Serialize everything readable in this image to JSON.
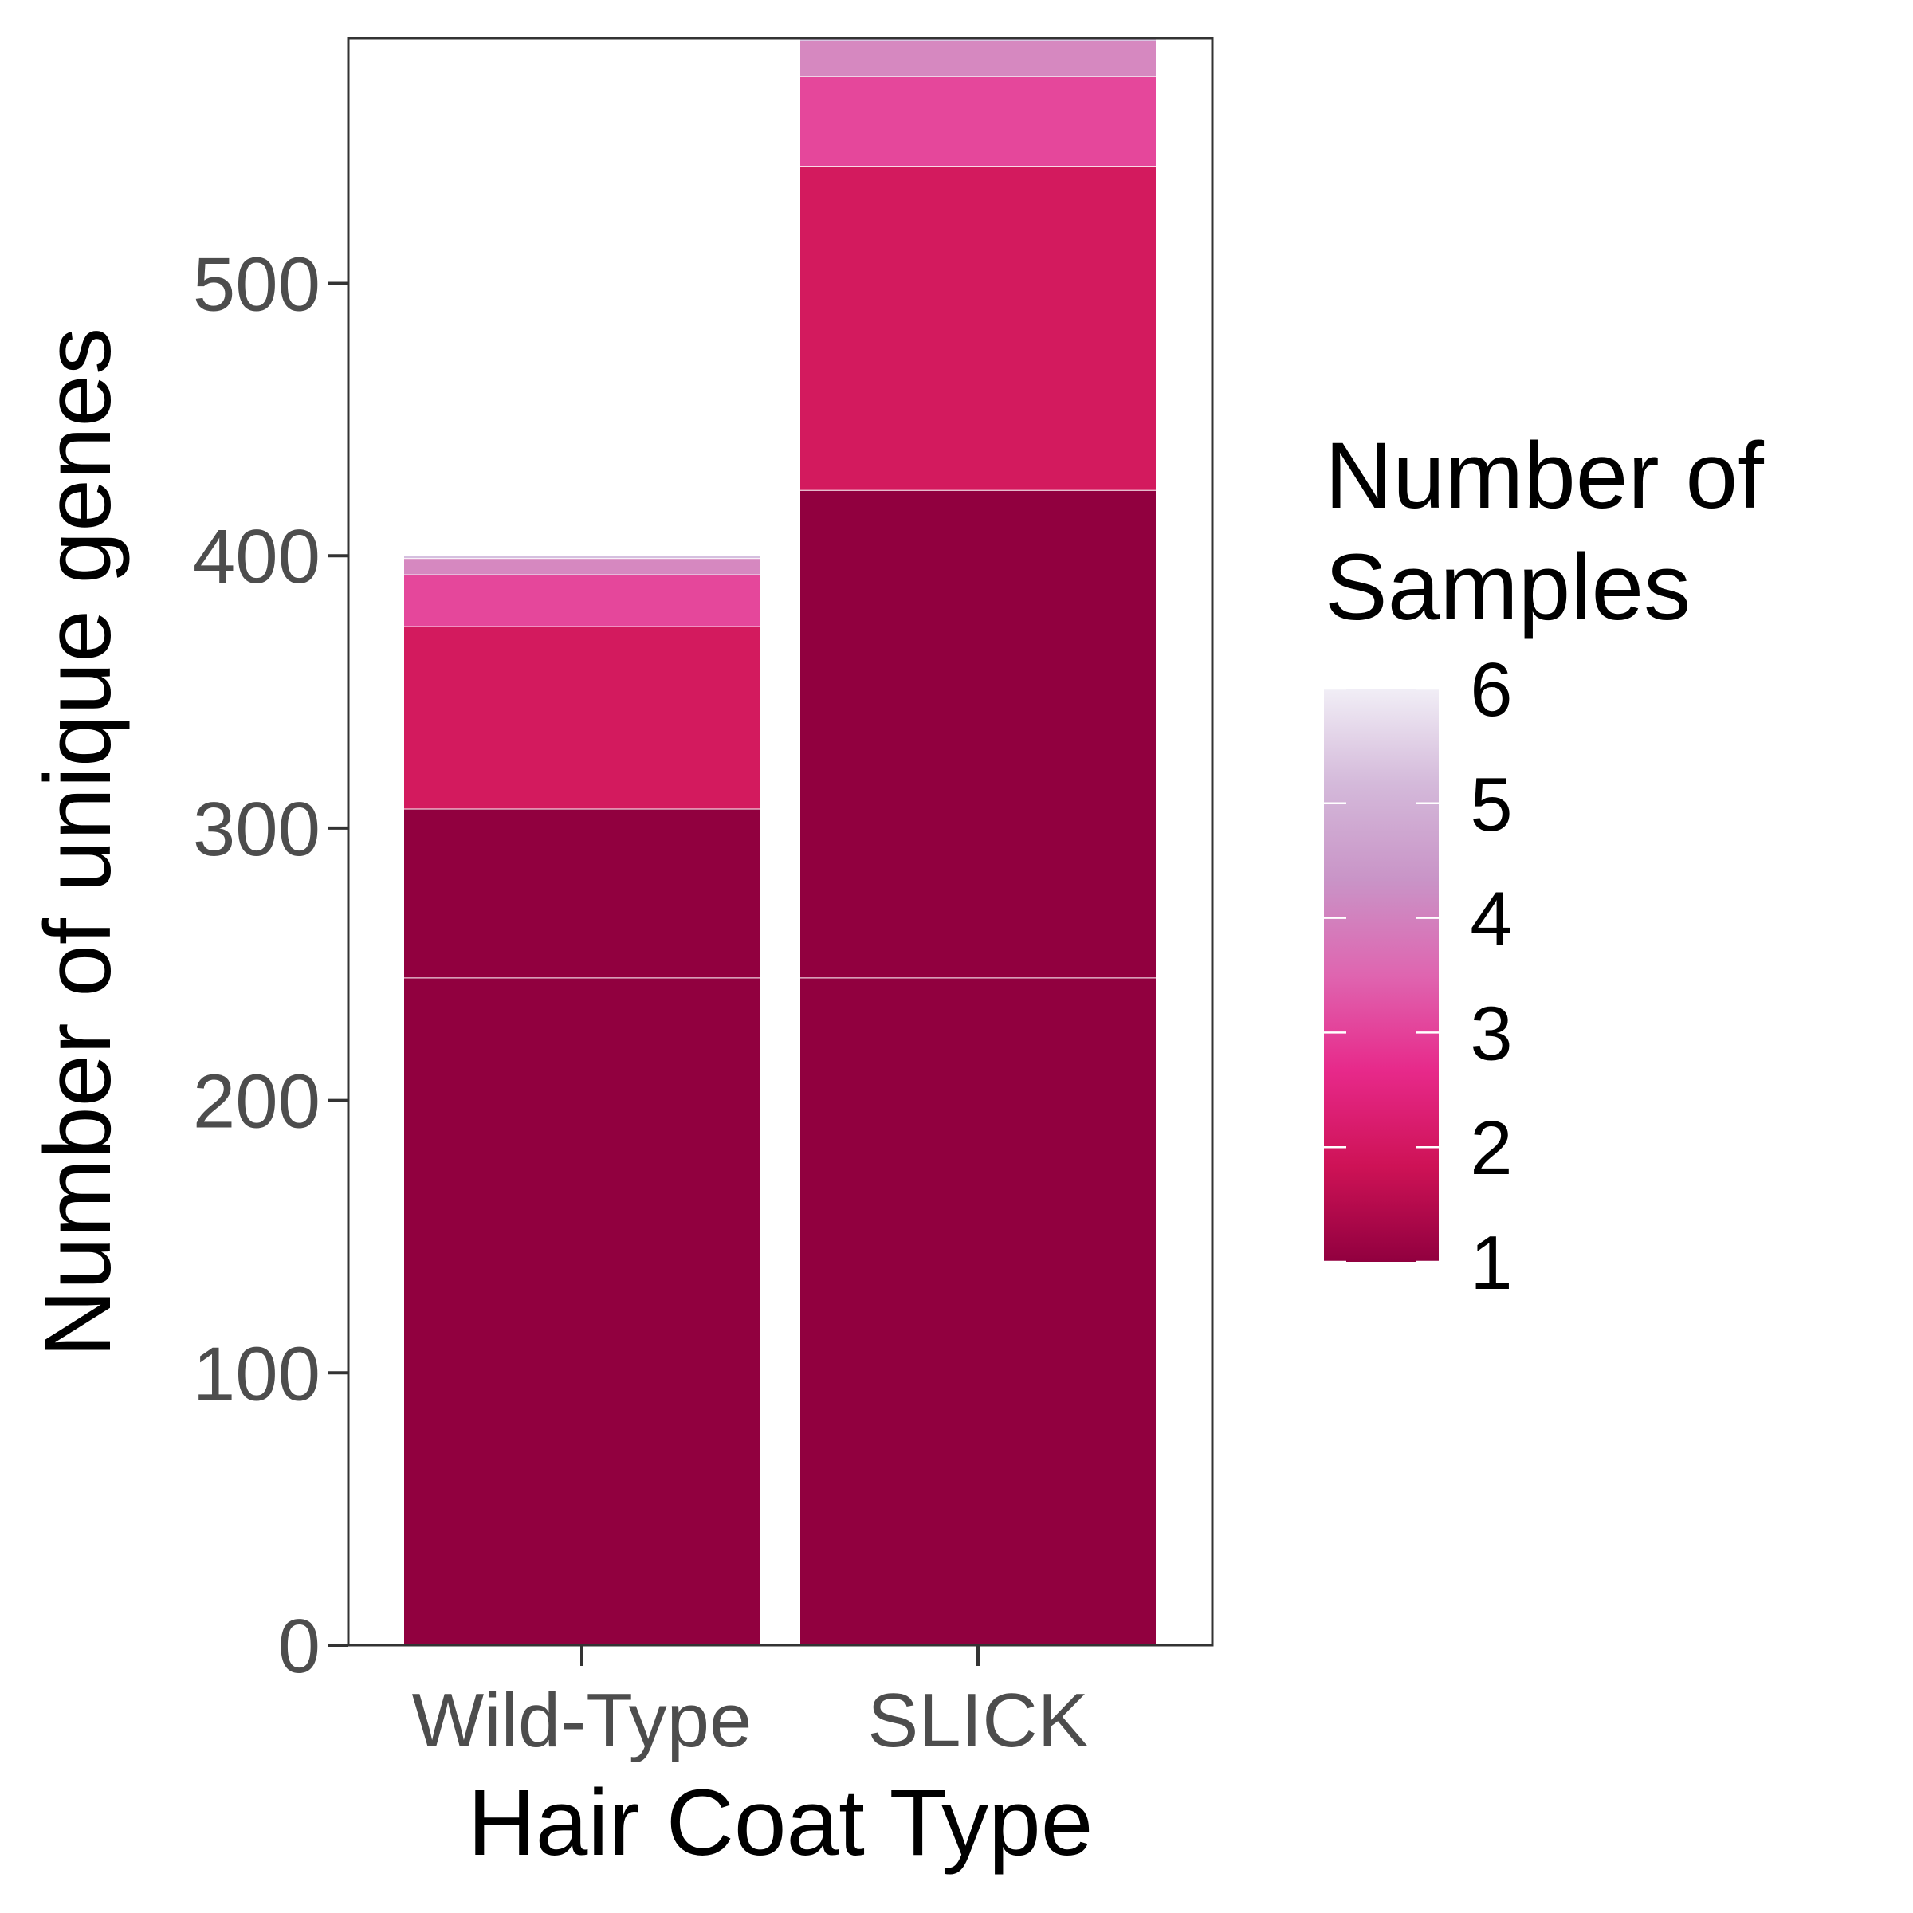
{
  "chart_data": {
    "type": "bar",
    "stacked": true,
    "xlabel": "Hair Coat Type",
    "ylabel": "Number of unique genes",
    "categories": [
      "Wild-Type",
      "SLICK"
    ],
    "ylim": [
      0,
      590
    ],
    "yticks": [
      0,
      100,
      200,
      300,
      400,
      500
    ],
    "grid": false,
    "stacks": [
      {
        "category": "Wild-Type",
        "segments": [
          {
            "samples": 1,
            "start": 0,
            "end": 245
          },
          {
            "samples": 1,
            "start": 245,
            "end": 307
          },
          {
            "samples": 2,
            "start": 307,
            "end": 374
          },
          {
            "samples": 3,
            "start": 374,
            "end": 393
          },
          {
            "samples": 4,
            "start": 393,
            "end": 399
          },
          {
            "samples": 5,
            "start": 399,
            "end": 400
          }
        ],
        "total": 400
      },
      {
        "category": "SLICK",
        "segments": [
          {
            "samples": 1,
            "start": 0,
            "end": 245
          },
          {
            "samples": 1,
            "start": 245,
            "end": 424
          },
          {
            "samples": 2,
            "start": 424,
            "end": 543
          },
          {
            "samples": 3,
            "start": 543,
            "end": 576
          },
          {
            "samples": 4,
            "start": 576,
            "end": 589
          },
          {
            "samples": 5,
            "start": 589,
            "end": 590
          }
        ],
        "total": 590
      }
    ],
    "legend": {
      "title_lines": [
        "Number of",
        "Samples"
      ],
      "type": "colorbar",
      "placement": "right",
      "range": [
        1,
        6
      ],
      "ticks": [
        1,
        2,
        3,
        4,
        5,
        6
      ]
    },
    "colors": {
      "1": "#91003f",
      "2": "#d31a5e",
      "3": "#e5479b",
      "4": "#d688c0",
      "5": "#d5bfdf",
      "6": "#f1eef6"
    },
    "colorbar_stops": [
      "#91003f",
      "#ce1256",
      "#e7298a",
      "#df65b0",
      "#c994c7",
      "#d4b9da",
      "#f1eef6"
    ]
  }
}
